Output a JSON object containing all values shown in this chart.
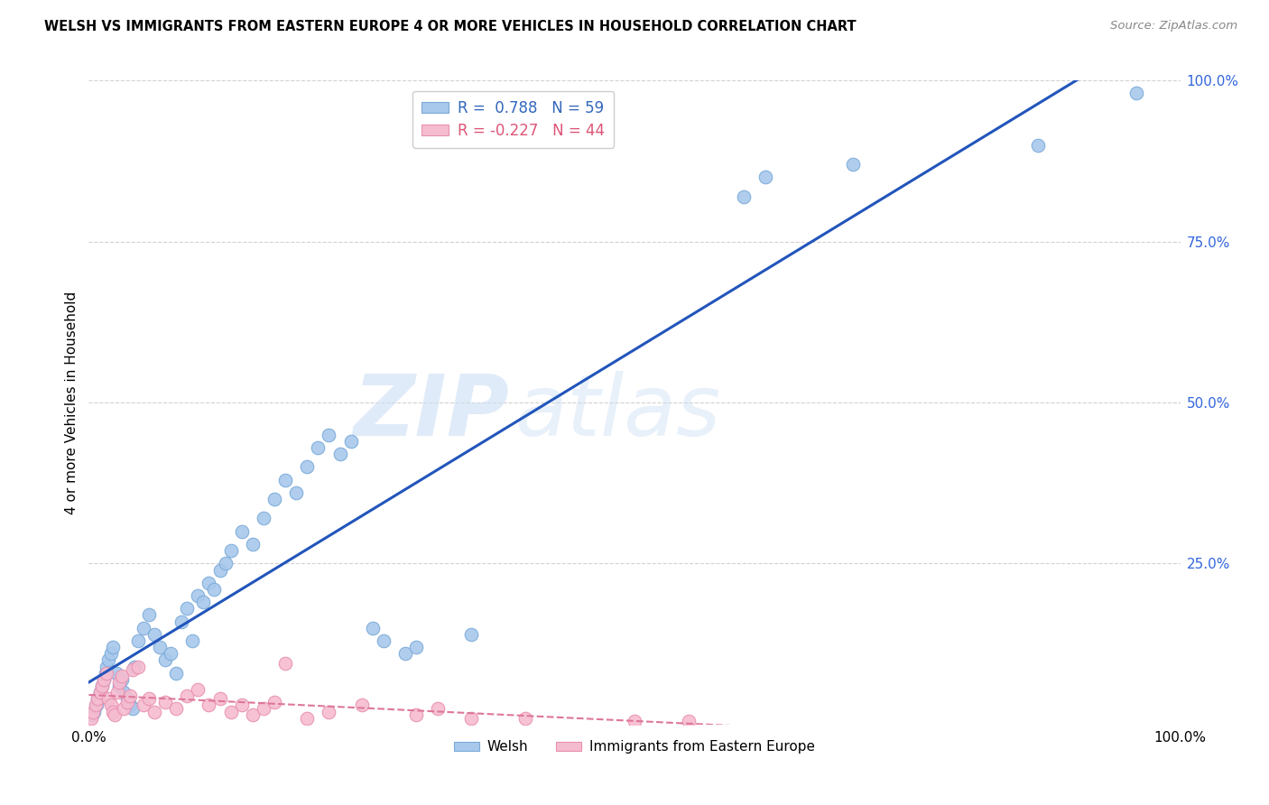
{
  "title": "WELSH VS IMMIGRANTS FROM EASTERN EUROPE 4 OR MORE VEHICLES IN HOUSEHOLD CORRELATION CHART",
  "source": "Source: ZipAtlas.com",
  "ylabel": "4 or more Vehicles in Household",
  "watermark_zip": "ZIP",
  "watermark_atlas": "atlas",
  "blue_label": "Welsh",
  "pink_label": "Immigrants from Eastern Europe",
  "blue_R": 0.788,
  "blue_N": 59,
  "pink_R": -0.227,
  "pink_N": 44,
  "blue_color": "#a8c8ec",
  "blue_edge_color": "#7aaad8",
  "pink_color": "#f5bcd0",
  "pink_edge_color": "#e890b0",
  "blue_line_color": "#2255bb",
  "pink_line_color": "#dd7799",
  "ytick_color": "#3366dd",
  "xmin": 0.0,
  "xmax": 100.0,
  "ymin": 0.0,
  "ymax": 100.0,
  "blue_x": [
    0.3,
    0.5,
    0.7,
    0.8,
    1.0,
    1.2,
    1.4,
    1.5,
    1.6,
    1.8,
    2.0,
    2.2,
    2.5,
    2.8,
    3.0,
    3.2,
    3.5,
    3.8,
    4.0,
    4.2,
    4.5,
    5.0,
    5.5,
    6.0,
    6.5,
    7.0,
    7.5,
    8.0,
    8.5,
    9.0,
    9.5,
    10.0,
    10.5,
    11.0,
    11.5,
    12.0,
    12.5,
    13.0,
    14.0,
    15.0,
    16.0,
    17.0,
    18.0,
    19.0,
    20.0,
    21.0,
    22.0,
    23.0,
    24.0,
    26.0,
    27.0,
    29.0,
    30.0,
    35.0,
    60.0,
    62.0,
    70.0,
    87.0,
    96.0
  ],
  "blue_y": [
    1.5,
    2.0,
    3.0,
    4.0,
    5.0,
    6.0,
    7.0,
    8.0,
    9.0,
    10.0,
    11.0,
    12.0,
    8.0,
    6.0,
    7.0,
    5.0,
    4.0,
    3.0,
    2.5,
    9.0,
    13.0,
    15.0,
    17.0,
    14.0,
    12.0,
    10.0,
    11.0,
    8.0,
    16.0,
    18.0,
    13.0,
    20.0,
    19.0,
    22.0,
    21.0,
    24.0,
    25.0,
    27.0,
    30.0,
    28.0,
    32.0,
    35.0,
    38.0,
    36.0,
    40.0,
    43.0,
    45.0,
    42.0,
    44.0,
    15.0,
    13.0,
    11.0,
    12.0,
    14.0,
    82.0,
    85.0,
    87.0,
    90.0,
    98.0
  ],
  "pink_x": [
    0.2,
    0.4,
    0.6,
    0.8,
    1.0,
    1.2,
    1.4,
    1.6,
    1.8,
    2.0,
    2.2,
    2.4,
    2.6,
    2.8,
    3.0,
    3.2,
    3.5,
    3.8,
    4.0,
    4.5,
    5.0,
    5.5,
    6.0,
    7.0,
    8.0,
    9.0,
    10.0,
    11.0,
    12.0,
    13.0,
    14.0,
    15.0,
    16.0,
    17.0,
    18.0,
    20.0,
    22.0,
    25.0,
    30.0,
    32.0,
    35.0,
    40.0,
    50.0,
    55.0
  ],
  "pink_y": [
    1.0,
    2.0,
    3.0,
    4.0,
    5.0,
    6.0,
    7.0,
    8.0,
    4.0,
    3.0,
    2.0,
    1.5,
    5.0,
    6.5,
    7.5,
    2.5,
    3.5,
    4.5,
    8.5,
    9.0,
    3.0,
    4.0,
    2.0,
    3.5,
    2.5,
    4.5,
    5.5,
    3.0,
    4.0,
    2.0,
    3.0,
    1.5,
    2.5,
    3.5,
    9.5,
    1.0,
    2.0,
    3.0,
    1.5,
    2.5,
    1.0,
    1.0,
    0.5,
    0.5
  ]
}
